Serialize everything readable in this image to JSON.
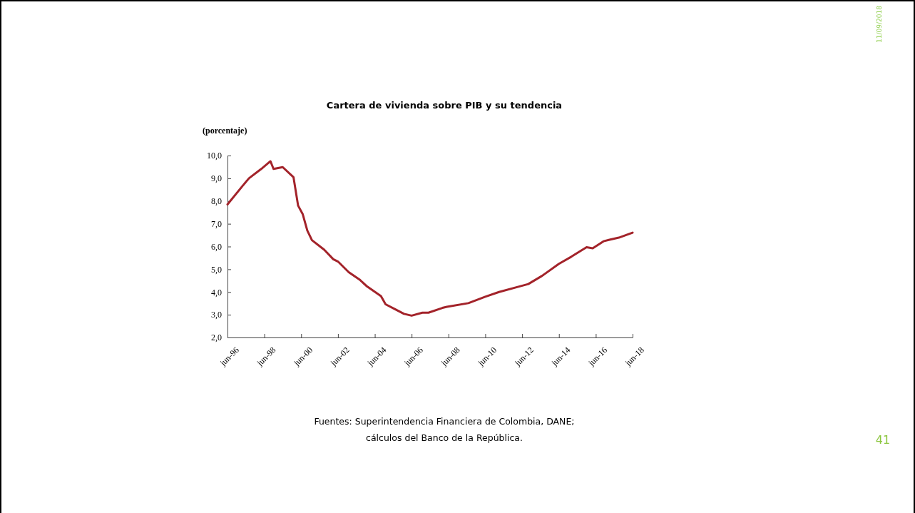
{
  "chart_data": {
    "type": "line",
    "title": "Cartera de vivienda sobre PIB y su tendencia",
    "ylabel": "(porcentaje)",
    "x": [
      "1996-06",
      "1997-04",
      "1997-08",
      "1998-04",
      "1998-10",
      "1998-12",
      "1999-06",
      "2000-01",
      "2000-04",
      "2000-07",
      "2000-10",
      "2001-01",
      "2001-09",
      "2002-03",
      "2002-06",
      "2003-01",
      "2003-08",
      "2004-01",
      "2004-10",
      "2005-01",
      "2005-07",
      "2006-01",
      "2006-06",
      "2007-01",
      "2007-05",
      "2008-02",
      "2008-05",
      "2009-07",
      "2010-06",
      "2011-03",
      "2012-04",
      "2012-10",
      "2013-07",
      "2014-06",
      "2015-02",
      "2015-12",
      "2016-04",
      "2016-11",
      "2017-03",
      "2017-09",
      "2018-06"
    ],
    "series": [
      {
        "color": "#a3232a",
        "values": [
          7.85,
          8.68,
          9.0,
          9.41,
          9.75,
          9.41,
          9.49,
          9.05,
          7.8,
          7.43,
          6.7,
          6.28,
          5.86,
          5.44,
          5.34,
          4.87,
          4.55,
          4.24,
          3.82,
          3.46,
          3.25,
          3.04,
          2.96,
          3.09,
          3.09,
          3.3,
          3.35,
          3.51,
          3.79,
          4.0,
          4.24,
          4.35,
          4.71,
          5.24,
          5.55,
          5.97,
          5.92,
          6.23,
          6.3,
          6.39,
          6.61
        ]
      }
    ],
    "xlim": [
      "1996-06",
      "2018-06"
    ],
    "xticks": [
      {
        "value": "1996-06",
        "label": "jun-96"
      },
      {
        "value": "1998-06",
        "label": "jun-98"
      },
      {
        "value": "2000-06",
        "label": "jun-00"
      },
      {
        "value": "2002-06",
        "label": "jun-02"
      },
      {
        "value": "2004-06",
        "label": "jun-04"
      },
      {
        "value": "2006-06",
        "label": "jun-06"
      },
      {
        "value": "2008-06",
        "label": "jun-08"
      },
      {
        "value": "2010-06",
        "label": "jun-10"
      },
      {
        "value": "2012-06",
        "label": "jun-12"
      },
      {
        "value": "2014-06",
        "label": "jun-14"
      },
      {
        "value": "2016-06",
        "label": "jun-16"
      },
      {
        "value": "2018-06",
        "label": "jun-18"
      }
    ],
    "ylim": [
      2,
      10
    ],
    "yticks": [
      {
        "value": 2,
        "label": "2,0"
      },
      {
        "value": 3,
        "label": "3,0"
      },
      {
        "value": 4,
        "label": "4,0"
      },
      {
        "value": 5,
        "label": "5,0"
      },
      {
        "value": 6,
        "label": "6,0"
      },
      {
        "value": 7,
        "label": "7,0"
      },
      {
        "value": 8,
        "label": "8,0"
      },
      {
        "value": 9,
        "label": "9,0"
      },
      {
        "value": 10,
        "label": "10,0"
      }
    ],
    "grid": false,
    "marker": "none",
    "line_style": "solid",
    "annotations": [
      "Fuentes: Superintendencia Financiera de Colombia, DANE; cálculos del Banco de la República.",
      "11/09/2018",
      "41"
    ]
  }
}
